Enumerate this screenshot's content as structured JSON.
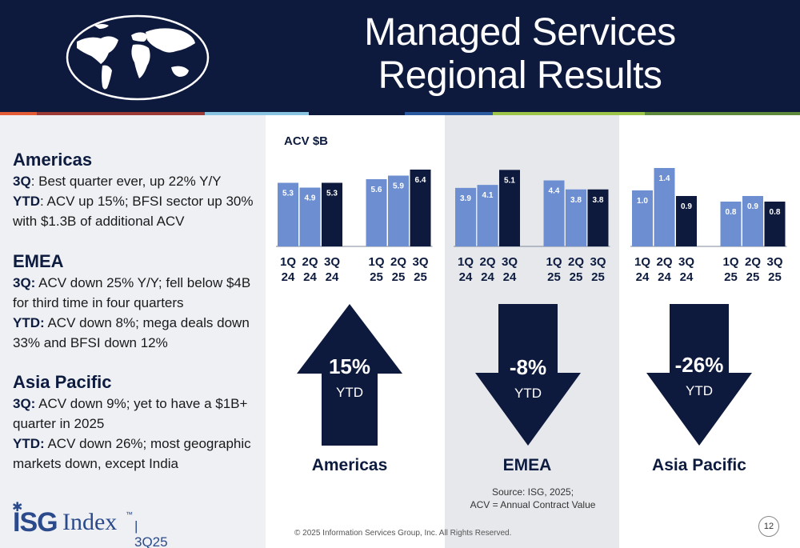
{
  "header": {
    "title_line1": "Managed Services",
    "title_line2": "Regional Results"
  },
  "colors": {
    "navy": "#0e1a3d",
    "bar_light": "#6d8fd2",
    "bar_dark": "#0e1a3d",
    "stripes": [
      "#e35b35",
      "#9c3b36",
      "#0e1a3d",
      "#88c4e0",
      "#2c5aa0",
      "#9dc54a",
      "#5f8a3b"
    ]
  },
  "sidebar": {
    "americas": {
      "title": "Americas",
      "q_label": "3Q",
      "q_text": ": Best quarter ever, up 22% Y/Y",
      "ytd_label": "YTD",
      "ytd_text": ": ACV up 15%; BFSI sector up 30% with $1.3B of additional ACV"
    },
    "emea": {
      "title": "EMEA",
      "q_label": "3Q:",
      "q_text": " ACV down 25% Y/Y; fell below $4B for third time in four quarters",
      "ytd_label": "YTD:",
      "ytd_text": " ACV down 8%; mega deals down 33% and BFSI down 12%"
    },
    "apac": {
      "title": "Asia Pacific",
      "q_label": "3Q:",
      "q_text": " ACV down 9%; yet to have a $1B+ quarter in 2025",
      "ytd_label": "YTD:",
      "ytd_text": " ACV down 26%; most geographic markets down, except India"
    }
  },
  "logo": {
    "brand": "ISG",
    "product": "Index",
    "tm": "™",
    "quarter": "| 3Q25"
  },
  "chart_data": [
    {
      "type": "bar",
      "region": "Americas",
      "title": "ACV $B",
      "categories": [
        "1Q 24",
        "2Q 24",
        "3Q 24",
        "1Q 25",
        "2Q 25",
        "3Q 25"
      ],
      "values": [
        5.3,
        4.9,
        5.3,
        5.6,
        5.9,
        6.4
      ],
      "ylim": [
        0,
        7
      ],
      "ytd_change": "15%",
      "ytd_label": "YTD",
      "direction": "up"
    },
    {
      "type": "bar",
      "region": "EMEA",
      "categories": [
        "1Q 24",
        "2Q 24",
        "3Q 24",
        "1Q 25",
        "2Q 25",
        "3Q 25"
      ],
      "values": [
        3.9,
        4.1,
        5.1,
        4.4,
        3.8,
        3.8
      ],
      "ylim": [
        0,
        5.6
      ],
      "ytd_change": "-8%",
      "ytd_label": "YTD",
      "direction": "down"
    },
    {
      "type": "bar",
      "region": "Asia Pacific",
      "categories": [
        "1Q 24",
        "2Q 24",
        "3Q 24",
        "1Q 25",
        "2Q 25",
        "3Q 25"
      ],
      "values": [
        1.0,
        1.4,
        0.9,
        0.8,
        0.9,
        0.8
      ],
      "ylim": [
        0,
        1.5
      ],
      "ytd_change": "-26%",
      "ytd_label": "YTD",
      "direction": "down"
    }
  ],
  "footer": {
    "source_line1": "Source: ISG, 2025;",
    "source_line2": "ACV = Annual Contract Value",
    "copyright": "© 2025 Information Services Group, Inc.  All Rights Reserved.",
    "page_number": "12"
  }
}
